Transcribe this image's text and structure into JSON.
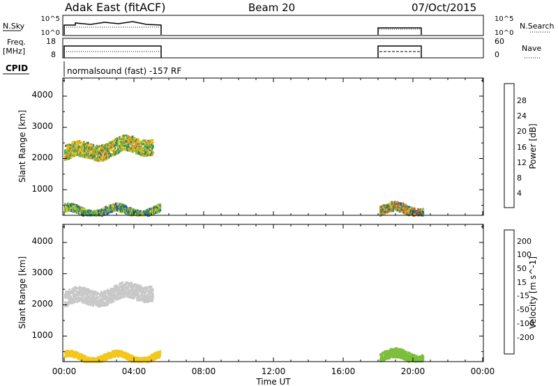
{
  "header": {
    "station": "Adak East (fitACF)",
    "beam": "Beam 20",
    "date": "07/Oct/2015"
  },
  "info_panels": {
    "nsky_label": "N.Sky",
    "nsky_ticks": [
      "10^5",
      "10^0"
    ],
    "nsky_right_ticks": [
      "10^5",
      "10^0"
    ],
    "nsearch_label": "N.Search",
    "freq_label_1": "Freq.",
    "freq_label_2": "[MHz]",
    "freq_ticks": [
      "18",
      "8"
    ],
    "nave_ticks": [
      "60",
      "0"
    ],
    "nave_label": "Nave",
    "cpid_label": "CPID",
    "cpid_text": "normalsound (fast) -157 RF"
  },
  "axes": {
    "ylabel": "Slant Range [km]",
    "xlabel": "Time UT",
    "x_ticks": [
      "00:00",
      "04:00",
      "08:00",
      "12:00",
      "16:00",
      "20:00",
      "00:00"
    ],
    "y_ticks": [
      "1000",
      "2000",
      "3000",
      "4000"
    ]
  },
  "colorbars": {
    "power_label": "Power [dB]",
    "power_ticks": [
      "4",
      "8",
      "12",
      "16",
      "20",
      "24",
      "28"
    ],
    "velocity_label": "Velocity [m s^-1]",
    "velocity_ticks": [
      "-200",
      "-100",
      "-50",
      "-15",
      "15",
      "50",
      "100",
      "200"
    ]
  },
  "colors": {
    "power": [
      "#0000ff",
      "#1e5aa8",
      "#2e8b57",
      "#7cbf3c",
      "#f2c81e",
      "#f58a1e",
      "#f04a1a",
      "#ff0000"
    ],
    "velocity": [
      "#ff0000",
      "#f06a1a",
      "#f7a21e",
      "#f2c81e",
      "#c8c8c8",
      "#7cbf3c",
      "#2e8b57",
      "#1e5aa8",
      "#0000ff"
    ]
  },
  "chart_data": [
    {
      "type": "heatmap",
      "title": "Power [dB]",
      "xlabel": "Time UT",
      "ylabel": "Slant Range [km]",
      "xlim": [
        "00:00",
        "24:00"
      ],
      "ylim": [
        180,
        4600
      ],
      "color_range": [
        0,
        32
      ],
      "regions": [
        {
          "t_start": "00:00",
          "t_end": "05:05",
          "range_center_start": 2200,
          "range_center_end": 2500,
          "width_km": 500,
          "power_db_typical": [
            8,
            24
          ]
        },
        {
          "t_start": "00:00",
          "t_end": "05:30",
          "range_center_start": 350,
          "range_center_end": 350,
          "width_km": 250,
          "power_db_typical": [
            4,
            20
          ]
        },
        {
          "t_start": "18:05",
          "t_end": "20:35",
          "range_center_start": 380,
          "range_center_end": 380,
          "width_km": 300,
          "power_db_typical": [
            4,
            28
          ]
        }
      ]
    },
    {
      "type": "heatmap",
      "title": "Velocity [m s^-1]",
      "xlabel": "Time UT",
      "ylabel": "Slant Range [km]",
      "xlim": [
        "00:00",
        "24:00"
      ],
      "ylim": [
        180,
        4600
      ],
      "color_range": [
        -250,
        250
      ],
      "regions": [
        {
          "t_start": "00:00",
          "t_end": "05:05",
          "range_center_start": 2200,
          "range_center_end": 2500,
          "width_km": 500,
          "velocity_typical": [
            -15,
            15
          ]
        },
        {
          "t_start": "00:00",
          "t_end": "05:30",
          "range_center_start": 350,
          "range_center_end": 350,
          "width_km": 200,
          "velocity_typical": [
            -50,
            -15
          ]
        },
        {
          "t_start": "18:05",
          "t_end": "20:35",
          "range_center_start": 380,
          "range_center_end": 380,
          "width_km": 300,
          "velocity_typical": [
            15,
            50
          ]
        }
      ]
    }
  ]
}
